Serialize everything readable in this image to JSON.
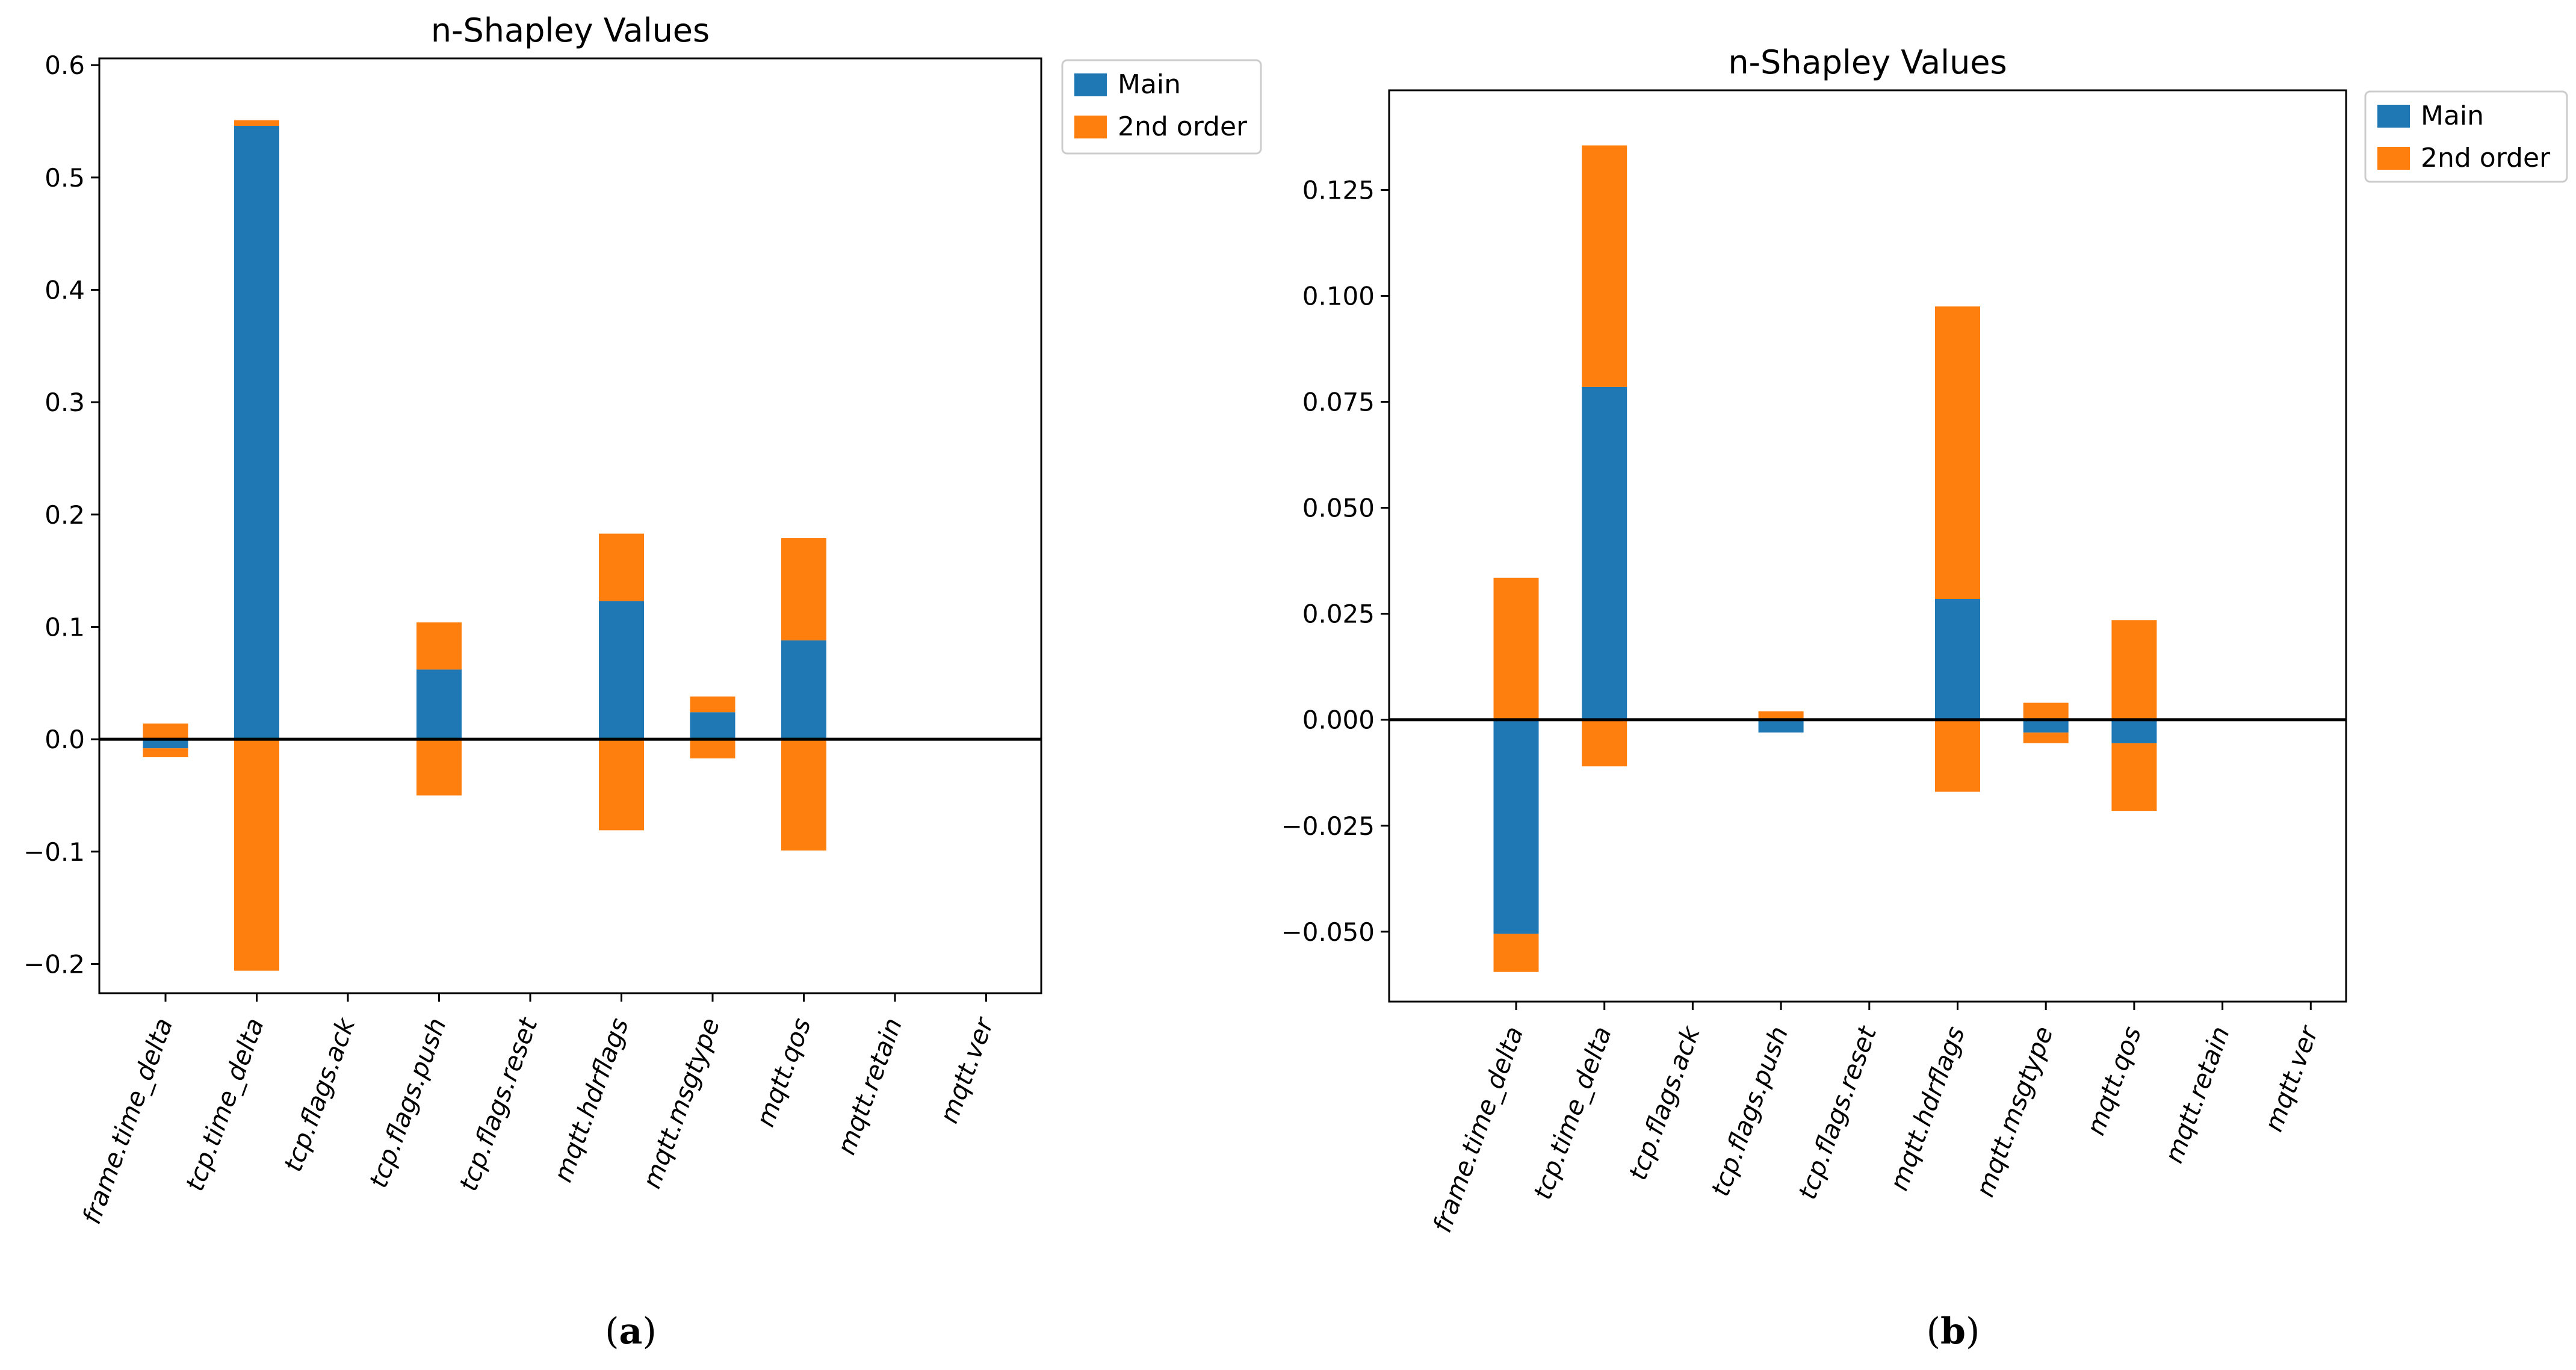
{
  "colors": {
    "main": "#1f77b4",
    "second": "#ff7f0e",
    "axis": "#000000"
  },
  "chart_data": [
    {
      "type": "bar",
      "title": "n-Shapley Values",
      "caption_letter": "a",
      "xlabel": "",
      "ylabel": "",
      "ylim": [
        -0.226,
        0.606
      ],
      "yticks": [
        -0.2,
        -0.1,
        0.0,
        0.1,
        0.2,
        0.3,
        0.4,
        0.5,
        0.6
      ],
      "ytick_labels": [
        "−0.2",
        "−0.1",
        "0.0",
        "0.1",
        "0.2",
        "0.3",
        "0.4",
        "0.5",
        "0.6"
      ],
      "legend_position": "outside-top-right",
      "categories": [
        "frame.time_delta",
        "tcp.time_delta",
        "tcp.flags.ack",
        "tcp.flags.push",
        "tcp.flags.reset",
        "mqtt.hdrflags",
        "mqtt.msgtype",
        "mqtt.qos",
        "mqtt.retain",
        "mqtt.ver"
      ],
      "series": [
        {
          "name": "Main",
          "values": [
            -0.008,
            0.546,
            0.0,
            0.062,
            0.0,
            0.123,
            0.024,
            0.088,
            0.0,
            0.0
          ]
        },
        {
          "name": "2nd order",
          "positive": [
            0.014,
            0.005,
            0.0,
            0.042,
            0.0,
            0.06,
            0.014,
            0.091,
            0.0,
            0.0
          ],
          "negative": [
            -0.008,
            -0.206,
            0.0,
            -0.05,
            0.0,
            -0.081,
            -0.017,
            -0.099,
            0.0,
            0.0
          ]
        }
      ]
    },
    {
      "type": "bar",
      "title": "n-Shapley Values",
      "caption_letter": "b",
      "xlabel": "",
      "ylabel": "",
      "ylim": [
        -0.0665,
        0.1485
      ],
      "yticks": [
        -0.05,
        -0.025,
        0.0,
        0.025,
        0.05,
        0.075,
        0.1,
        0.125
      ],
      "ytick_labels": [
        "−0.050",
        "−0.025",
        "0.000",
        "0.025",
        "0.050",
        "0.075",
        "0.100",
        "0.125"
      ],
      "legend_position": "outside-top-right",
      "categories": [
        "frame.time_delta",
        "tcp.time_delta",
        "tcp.flags.ack",
        "tcp.flags.push",
        "tcp.flags.reset",
        "mqtt.hdrflags",
        "mqtt.msgtype",
        "mqtt.qos",
        "mqtt.retain",
        "mqtt.ver"
      ],
      "series": [
        {
          "name": "Main",
          "values": [
            -0.0505,
            0.0785,
            0.0,
            -0.003,
            0.0,
            0.0285,
            -0.003,
            -0.0055,
            0.0,
            0.0
          ]
        },
        {
          "name": "2nd order",
          "positive": [
            0.0335,
            0.057,
            0.0,
            0.002,
            0.0,
            0.069,
            0.004,
            0.0235,
            0.0,
            0.0
          ],
          "negative": [
            -0.009,
            -0.011,
            0.0,
            0.0,
            0.0,
            -0.017,
            -0.0025,
            -0.016,
            0.0,
            0.0
          ]
        }
      ]
    }
  ]
}
